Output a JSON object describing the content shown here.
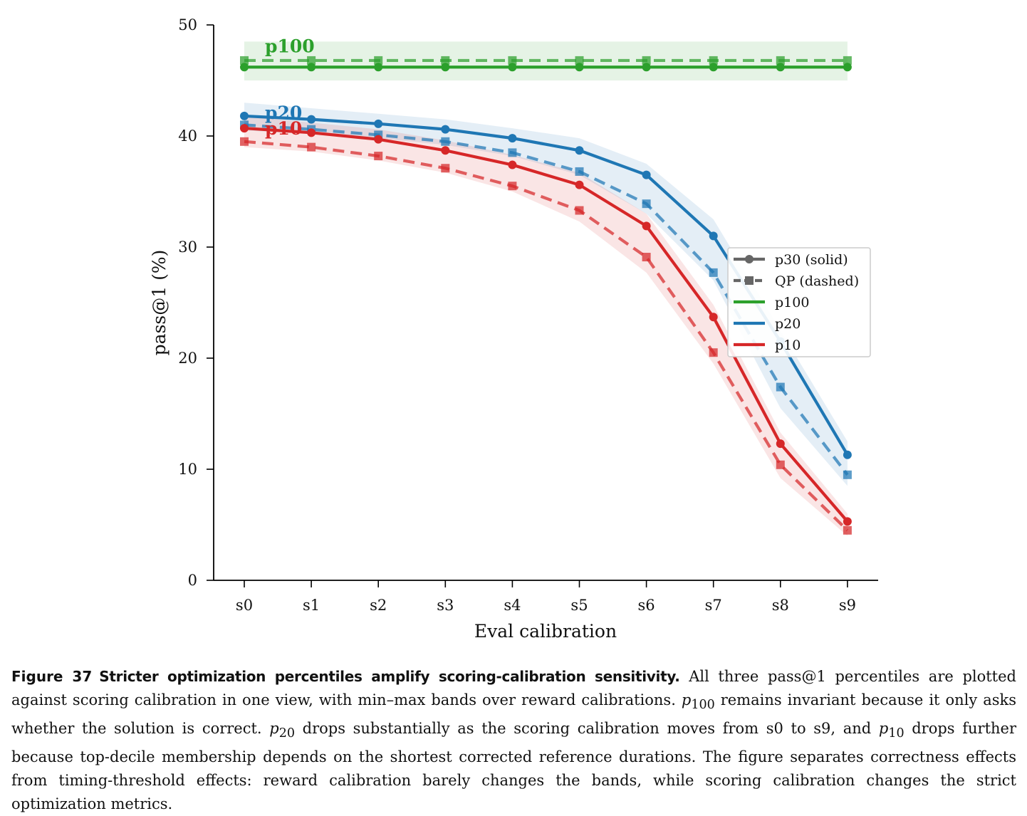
{
  "chart_data": {
    "type": "line",
    "title": "",
    "xlabel": "Eval calibration",
    "ylabel": "pass@1 (%)",
    "categories": [
      "s0",
      "s1",
      "s2",
      "s3",
      "s4",
      "s5",
      "s6",
      "s7",
      "s8",
      "s9"
    ],
    "ylim": [
      0,
      50
    ],
    "yticks": [
      0,
      10,
      20,
      30,
      40,
      50
    ],
    "grid": false,
    "legend_position": "center-right",
    "legend": [
      {
        "label": "p30 (solid)",
        "style": "solid-circle",
        "color": "#666666"
      },
      {
        "label": "QP (dashed)",
        "style": "dashed-square",
        "color": "#666666"
      },
      {
        "label": "p100",
        "style": "line",
        "color": "#2ca02c"
      },
      {
        "label": "p20",
        "style": "line",
        "color": "#1f77b4"
      },
      {
        "label": "p10",
        "style": "line",
        "color": "#d62728"
      }
    ],
    "series": [
      {
        "name": "p100",
        "variant": "solid",
        "color": "#2ca02c",
        "values": [
          46.2,
          46.2,
          46.2,
          46.2,
          46.2,
          46.2,
          46.2,
          46.2,
          46.2,
          46.2
        ],
        "band_low": [
          45.0,
          45.0,
          45.0,
          45.0,
          45.0,
          45.0,
          45.0,
          45.0,
          45.0,
          45.0
        ],
        "band_high": [
          48.5,
          48.5,
          48.5,
          48.5,
          48.5,
          48.5,
          48.5,
          48.5,
          48.5,
          48.5
        ]
      },
      {
        "name": "p100",
        "variant": "dashed",
        "color": "#2ca02c",
        "values": [
          46.8,
          46.8,
          46.8,
          46.8,
          46.8,
          46.8,
          46.8,
          46.8,
          46.8,
          46.8
        ]
      },
      {
        "name": "p20",
        "variant": "solid",
        "color": "#1f77b4",
        "values": [
          41.8,
          41.5,
          41.1,
          40.6,
          39.8,
          38.7,
          36.5,
          31.0,
          21.5,
          11.3
        ],
        "band_low": [
          40.5,
          40.2,
          39.8,
          39.2,
          38.2,
          36.5,
          33.0,
          27.0,
          15.5,
          8.5
        ],
        "band_high": [
          43.0,
          42.5,
          42.0,
          41.5,
          40.7,
          39.8,
          37.5,
          32.5,
          22.5,
          12.5
        ]
      },
      {
        "name": "p20",
        "variant": "dashed",
        "color": "#1f77b4",
        "values": [
          41.0,
          40.6,
          40.1,
          39.5,
          38.5,
          36.8,
          33.9,
          27.7,
          17.4,
          9.5
        ]
      },
      {
        "name": "p10",
        "variant": "solid",
        "color": "#d62728",
        "values": [
          40.7,
          40.3,
          39.7,
          38.7,
          37.4,
          35.6,
          31.9,
          23.7,
          12.3,
          5.3
        ],
        "band_low": [
          39.0,
          38.6,
          37.8,
          36.7,
          35.0,
          32.3,
          27.7,
          19.5,
          9.2,
          4.0
        ],
        "band_high": [
          41.8,
          41.2,
          40.6,
          39.6,
          38.3,
          36.7,
          33.0,
          24.8,
          13.3,
          6.0
        ]
      },
      {
        "name": "p10",
        "variant": "dashed",
        "color": "#d62728",
        "values": [
          39.5,
          39.0,
          38.2,
          37.1,
          35.5,
          33.3,
          29.1,
          20.5,
          10.4,
          4.5
        ]
      }
    ],
    "annotations": [
      {
        "text": "p100",
        "color": "#2ca02c",
        "x": "s0",
        "y": 48.1
      },
      {
        "text": "p20",
        "color": "#1f77b4",
        "x": "s0",
        "y": 42.1
      },
      {
        "text": "p10",
        "color": "#d62728",
        "x": "s0",
        "y": 40.7
      }
    ]
  },
  "caption": {
    "label": "Figure 37",
    "title": "Stricter optimization percentiles amplify scoring-calibration sensitivity.",
    "body_1": " All three pass@1 percentiles are plotted against scoring calibration in one view, with min–max bands over reward calibrations. ",
    "sym_p": "p",
    "sub_100": "100",
    "body_2": " remains invariant because it only asks whether the solution is correct. ",
    "sub_20": "20",
    "body_3": " drops substantially as the scoring calibration moves from s0 to s9, and ",
    "sub_10": "10",
    "body_4": " drops further because top-decile membership depends on the shortest corrected reference durations. The figure separates correctness effects from timing-threshold effects: reward calibration barely changes the bands, while scoring calibration changes the strict optimization metrics."
  }
}
